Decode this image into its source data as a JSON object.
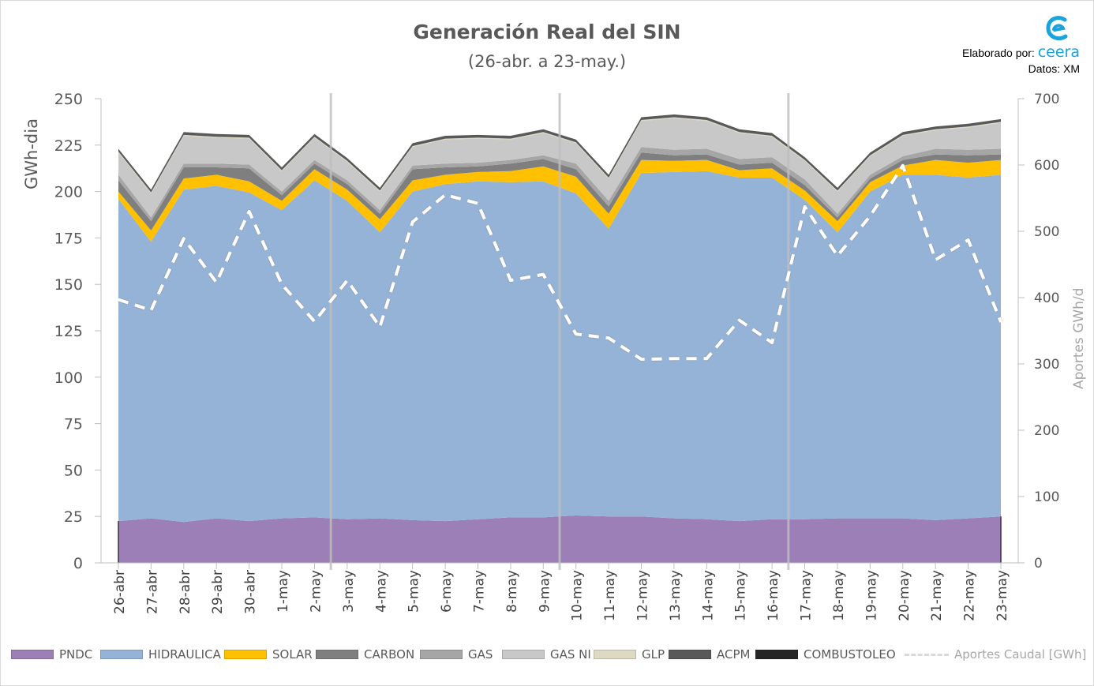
{
  "title": "Generación Real del SIN",
  "subtitle": "(26-abr. a 23-may.)",
  "credit": {
    "prefix": "Elaborado por:",
    "brand": "ceera",
    "source": "Datos: XM"
  },
  "logo_icon": "ceera-swirl-logo",
  "colors": {
    "PNDC": "#9b7fb6",
    "HIDRAULICA": "#95b3d7",
    "SOLAR": "#ffc000",
    "CARBON": "#7f7f7f",
    "GAS": "#a6a6a6",
    "GAS NI": "#c8c8c8",
    "GLP": "#ddd9c3",
    "ACPM": "#595959",
    "COMBUSTOLEO": "#262626",
    "Aportes Caudal [GWh]": "#ffffff"
  },
  "chart_data": {
    "type": "area",
    "stacked": true,
    "title": "Generación Real del SIN",
    "subtitle": "(26-abr. a 23-may.)",
    "ylabel": "GWh-dia",
    "ylabel_right": "Aportes GWh/d",
    "ylim": [
      0,
      250
    ],
    "y_ticks": [
      0,
      25,
      50,
      75,
      100,
      125,
      150,
      175,
      200,
      225,
      250
    ],
    "ylim_right": [
      0,
      700
    ],
    "y_ticks_right": [
      0,
      100,
      200,
      300,
      400,
      500,
      600,
      700
    ],
    "grid": false,
    "legend_position": "bottom",
    "week_separators_after": [
      "2-may",
      "9-may",
      "16-may"
    ],
    "categories": [
      "26-abr",
      "27-abr",
      "28-abr",
      "29-abr",
      "30-abr",
      "1-may",
      "2-may",
      "3-may",
      "4-may",
      "5-may",
      "6-may",
      "7-may",
      "8-may",
      "9-may",
      "10-may",
      "11-may",
      "12-may",
      "13-may",
      "14-may",
      "15-may",
      "16-may",
      "17-may",
      "18-may",
      "19-may",
      "20-may",
      "21-may",
      "22-may",
      "23-may"
    ],
    "series": [
      {
        "name": "PNDC",
        "values": [
          22.5,
          24,
          22,
          24,
          22.5,
          24,
          24.5,
          23.5,
          24,
          23,
          22.5,
          23.5,
          24.5,
          24.5,
          25.5,
          25,
          25,
          24,
          23.5,
          22.5,
          23.5,
          23.5,
          24,
          24,
          24,
          23,
          24,
          25
        ]
      },
      {
        "name": "HIDRAULICA",
        "values": [
          173.5,
          149,
          179,
          179,
          177,
          166,
          181.5,
          171.5,
          154,
          177,
          181.5,
          182,
          180.5,
          181,
          173.5,
          155,
          185,
          186.5,
          187.5,
          185,
          184,
          172,
          154,
          176,
          185,
          186,
          183.5,
          184
        ]
      },
      {
        "name": "SOLAR",
        "values": [
          4,
          6,
          6,
          6,
          6,
          5,
          6,
          6,
          7,
          6,
          5,
          5,
          6,
          8,
          9,
          8,
          7,
          6,
          6,
          4,
          5,
          5,
          6,
          5,
          5,
          8,
          8,
          8
        ]
      },
      {
        "name": "CARBON",
        "values": [
          6,
          5,
          6,
          4,
          7,
          3,
          3,
          3,
          3,
          6,
          4,
          3,
          4,
          4,
          4,
          4,
          4,
          3,
          3,
          3,
          3,
          3,
          2,
          2,
          3,
          3,
          4,
          3
        ]
      },
      {
        "name": "GAS",
        "values": [
          3,
          2,
          2,
          2,
          2,
          2,
          2,
          2,
          2,
          2,
          2,
          2,
          2,
          2,
          3,
          3,
          3,
          3,
          3,
          3,
          3,
          3,
          2,
          2,
          2,
          3,
          3,
          3
        ]
      },
      {
        "name": "GAS NI",
        "values": [
          12,
          13,
          15,
          14,
          14,
          11,
          12,
          10,
          10,
          10,
          13,
          13,
          11,
          12,
          11,
          12,
          14,
          17,
          15,
          14,
          11,
          10,
          12,
          10,
          11,
          10,
          12,
          14
        ]
      },
      {
        "name": "GLP",
        "values": [
          0.5,
          0.5,
          0.5,
          0.5,
          0.5,
          0.5,
          0.5,
          0.5,
          0.5,
          0.5,
          0.5,
          0.5,
          0.5,
          0.5,
          0.5,
          0.5,
          0.5,
          0.5,
          0.5,
          0.5,
          0.5,
          0.5,
          0.5,
          0.5,
          0.5,
          0.5,
          0.5,
          0.5
        ]
      },
      {
        "name": "ACPM",
        "values": [
          1.5,
          1.5,
          1.5,
          1.5,
          1.5,
          1.5,
          1.5,
          1.5,
          1.5,
          1.5,
          1.5,
          1.5,
          1.5,
          1.5,
          1.5,
          1.5,
          1.5,
          1.5,
          1.5,
          1.5,
          1.5,
          1.5,
          1.5,
          1.5,
          1.5,
          1.5,
          1.5,
          1.5
        ]
      },
      {
        "name": "COMBUSTOLEO",
        "values": [
          0,
          0,
          0,
          0,
          0,
          0,
          0,
          0,
          0,
          0,
          0,
          0,
          0,
          0,
          0,
          0,
          0,
          0,
          0,
          0,
          0,
          0,
          0,
          0,
          0,
          0,
          0,
          0
        ]
      }
    ],
    "line_series": {
      "name": "Aportes Caudal [GWh]",
      "axis": "right",
      "style": "dashed",
      "values": [
        397,
        381,
        489,
        423,
        530,
        420,
        364,
        426,
        356,
        514,
        555,
        542,
        426,
        435,
        345,
        339,
        307,
        308,
        308,
        366,
        332,
        537,
        463,
        523,
        599,
        457,
        487,
        363
      ]
    }
  }
}
